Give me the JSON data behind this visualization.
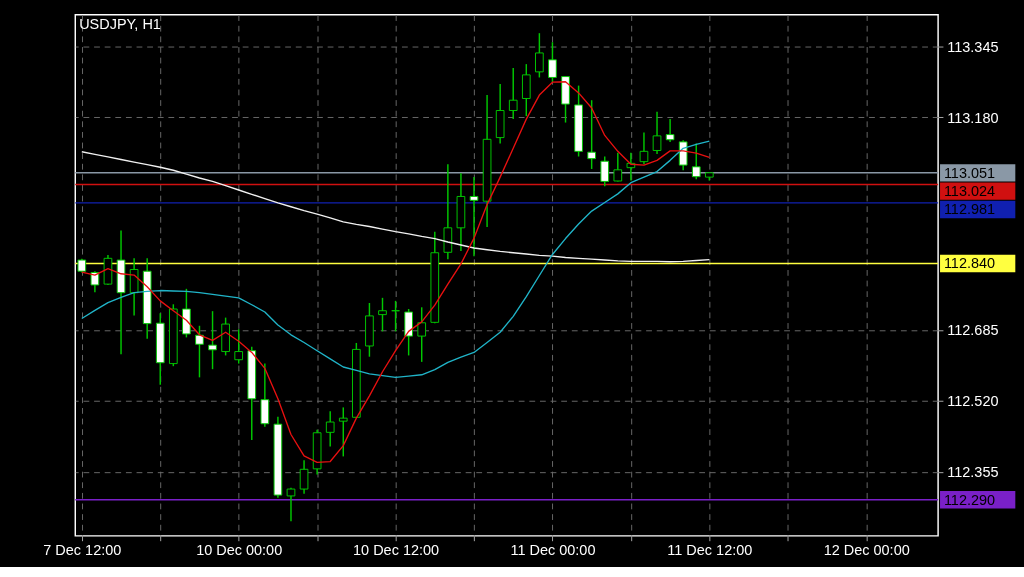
{
  "chart_data": {
    "type": "candlestick",
    "title": "USDJPY, H1",
    "color": "#00c800",
    "categories": [
      "7 Dec 12:00",
      null,
      null,
      null,
      null,
      null,
      null,
      null,
      null,
      null,
      null,
      null,
      "10 Dec 00:00",
      null,
      null,
      null,
      null,
      null,
      null,
      null,
      null,
      null,
      null,
      null,
      "10 Dec 12:00",
      null,
      null,
      null,
      null,
      null,
      null,
      null,
      null,
      null,
      null,
      null,
      "11 Dec 00:00",
      null,
      null,
      null,
      null,
      null,
      null,
      null,
      null,
      null,
      null,
      null,
      "11 Dec 12:00",
      null,
      null,
      null,
      null,
      null,
      null,
      null,
      null,
      null,
      null,
      null,
      "12 Dec 00:00",
      null,
      null,
      null,
      null,
      null
    ],
    "ohlc": [
      [
        112.848,
        112.851,
        112.819,
        112.822
      ],
      [
        112.819,
        112.822,
        112.773,
        112.79
      ],
      [
        112.792,
        112.86,
        112.79,
        112.852
      ],
      [
        112.848,
        112.917,
        112.629,
        112.772
      ],
      [
        112.772,
        112.852,
        112.719,
        112.826
      ],
      [
        112.822,
        112.852,
        112.665,
        112.7
      ],
      [
        112.701,
        112.724,
        112.558,
        112.609
      ],
      [
        112.607,
        112.745,
        112.601,
        112.734
      ],
      [
        112.734,
        112.781,
        112.668,
        112.676
      ],
      [
        112.673,
        112.695,
        112.575,
        112.652
      ],
      [
        112.65,
        112.729,
        112.594,
        112.639
      ],
      [
        112.635,
        112.714,
        112.626,
        112.699
      ],
      [
        112.616,
        112.687,
        112.607,
        112.635
      ],
      [
        112.637,
        112.646,
        112.429,
        112.525
      ],
      [
        112.523,
        112.607,
        112.46,
        112.467
      ],
      [
        112.466,
        112.483,
        112.295,
        112.301
      ],
      [
        112.299,
        112.318,
        112.24,
        112.315
      ],
      [
        112.315,
        112.382,
        112.304,
        112.361
      ],
      [
        112.362,
        112.453,
        112.349,
        112.446
      ],
      [
        112.447,
        112.496,
        112.414,
        112.471
      ],
      [
        112.473,
        112.505,
        112.391,
        112.48
      ],
      [
        112.482,
        112.655,
        112.481,
        112.64
      ],
      [
        112.648,
        112.748,
        112.623,
        112.718
      ],
      [
        112.721,
        112.76,
        112.682,
        112.73
      ],
      [
        112.73,
        112.753,
        112.682,
        112.73
      ],
      [
        112.727,
        112.734,
        112.626,
        112.671
      ],
      [
        112.671,
        112.738,
        112.611,
        112.702
      ],
      [
        112.703,
        112.914,
        112.701,
        112.865
      ],
      [
        112.866,
        113.071,
        112.85,
        112.923
      ],
      [
        112.923,
        113.05,
        112.869,
        112.996
      ],
      [
        112.996,
        113.041,
        112.857,
        112.987
      ],
      [
        112.985,
        113.232,
        112.925,
        113.129
      ],
      [
        113.133,
        113.258,
        113.119,
        113.196
      ],
      [
        113.196,
        113.295,
        113.176,
        113.22
      ],
      [
        113.224,
        113.304,
        113.183,
        113.279
      ],
      [
        113.286,
        113.376,
        113.273,
        113.33
      ],
      [
        113.314,
        113.355,
        113.262,
        113.273
      ],
      [
        113.275,
        113.275,
        113.168,
        113.211
      ],
      [
        113.209,
        113.254,
        113.089,
        113.101
      ],
      [
        113.099,
        113.22,
        113.06,
        113.084
      ],
      [
        113.078,
        113.089,
        113.02,
        113.031
      ],
      [
        113.032,
        113.098,
        113.031,
        113.058
      ],
      [
        113.063,
        113.098,
        113.033,
        113.073
      ],
      [
        113.077,
        113.145,
        113.071,
        113.101
      ],
      [
        113.103,
        113.193,
        113.095,
        113.137
      ],
      [
        113.14,
        113.176,
        113.123,
        113.128
      ],
      [
        113.123,
        113.127,
        113.057,
        113.069
      ],
      [
        113.065,
        113.119,
        113.036,
        113.042
      ],
      [
        113.041,
        113.052,
        113.033,
        113.051
      ],
      null,
      null,
      null,
      null,
      null,
      null,
      null,
      null,
      null,
      null,
      null,
      null,
      null,
      null,
      null,
      null,
      null
    ],
    "series": [
      {
        "type": "line",
        "color": "#f0f0f0",
        "values": [
          113.1,
          113.094,
          113.088,
          113.082,
          113.076,
          113.07,
          113.064,
          113.057,
          113.048,
          113.039,
          113.031,
          113.021,
          113.011,
          113.001,
          112.991,
          112.981,
          112.972,
          112.963,
          112.955,
          112.946,
          112.937,
          112.931,
          112.926,
          112.92,
          112.914,
          112.909,
          112.903,
          112.898,
          112.89,
          112.883,
          112.876,
          112.872,
          112.868,
          112.865,
          112.862,
          112.859,
          112.857,
          112.854,
          112.852,
          112.85,
          112.848,
          112.846,
          112.845,
          112.845,
          112.845,
          112.844,
          112.845,
          112.847,
          112.849,
          null,
          null,
          null,
          null,
          null,
          null,
          null,
          null,
          null,
          null,
          null,
          null,
          null,
          null,
          null,
          null,
          null
        ]
      },
      {
        "type": "line",
        "color": "#20b4c8",
        "values": [
          112.712,
          112.731,
          112.749,
          112.761,
          112.772,
          112.775,
          112.777,
          112.776,
          112.775,
          112.772,
          112.768,
          112.764,
          112.76,
          112.744,
          112.727,
          112.697,
          112.674,
          112.656,
          112.637,
          112.618,
          112.599,
          112.591,
          112.583,
          112.579,
          112.575,
          112.578,
          112.581,
          112.593,
          112.61,
          112.622,
          112.633,
          112.656,
          112.68,
          112.717,
          112.763,
          112.812,
          112.861,
          112.898,
          112.932,
          112.962,
          112.982,
          113.002,
          113.028,
          113.041,
          113.054,
          113.08,
          113.108,
          113.117,
          113.125,
          null,
          null,
          null,
          null,
          null,
          null,
          null,
          null,
          null,
          null,
          null,
          null,
          null,
          null,
          null,
          null,
          null
        ]
      },
      {
        "type": "line",
        "color": "#e81010",
        "values": [
          112.82,
          112.813,
          112.828,
          112.816,
          112.813,
          112.786,
          112.753,
          112.73,
          112.708,
          112.674,
          112.661,
          112.68,
          112.659,
          112.633,
          112.596,
          112.525,
          112.442,
          112.392,
          112.377,
          112.379,
          112.416,
          112.48,
          112.532,
          112.588,
          112.637,
          112.682,
          112.704,
          112.743,
          112.792,
          112.839,
          112.899,
          112.977,
          113.041,
          113.108,
          113.176,
          113.232,
          113.262,
          113.263,
          113.237,
          113.202,
          113.138,
          113.101,
          113.071,
          113.069,
          113.08,
          113.102,
          113.102,
          113.097,
          113.087,
          null,
          null,
          null,
          null,
          null,
          null,
          null,
          null,
          null,
          null,
          null,
          null,
          null,
          null,
          null,
          null,
          null
        ]
      }
    ],
    "ref_lines": [
      {
        "axis": "y",
        "value": 113.051,
        "label": "113.051",
        "color": "#8a98a6"
      },
      {
        "axis": "y",
        "value": 113.024,
        "label": "113.024",
        "color": "#d01010"
      },
      {
        "axis": "y",
        "value": 112.981,
        "label": "112.981",
        "color": "#1020b0"
      },
      {
        "axis": "y",
        "value": 112.84,
        "label": "112.840",
        "color": "#ffff40"
      },
      {
        "axis": "y",
        "value": 112.29,
        "label": "112.290",
        "color": "#7a20c8"
      }
    ],
    "ylim": [
      112.206,
      113.419
    ],
    "yticks": [
      {
        "value": 112.355,
        "label": "112.355"
      },
      {
        "value": 112.52,
        "label": "112.520"
      },
      {
        "value": 112.685,
        "label": "112.685"
      },
      {
        "value": 113.18,
        "label": "113.180"
      },
      {
        "value": 113.345,
        "label": "113.345"
      }
    ],
    "grid": true
  }
}
